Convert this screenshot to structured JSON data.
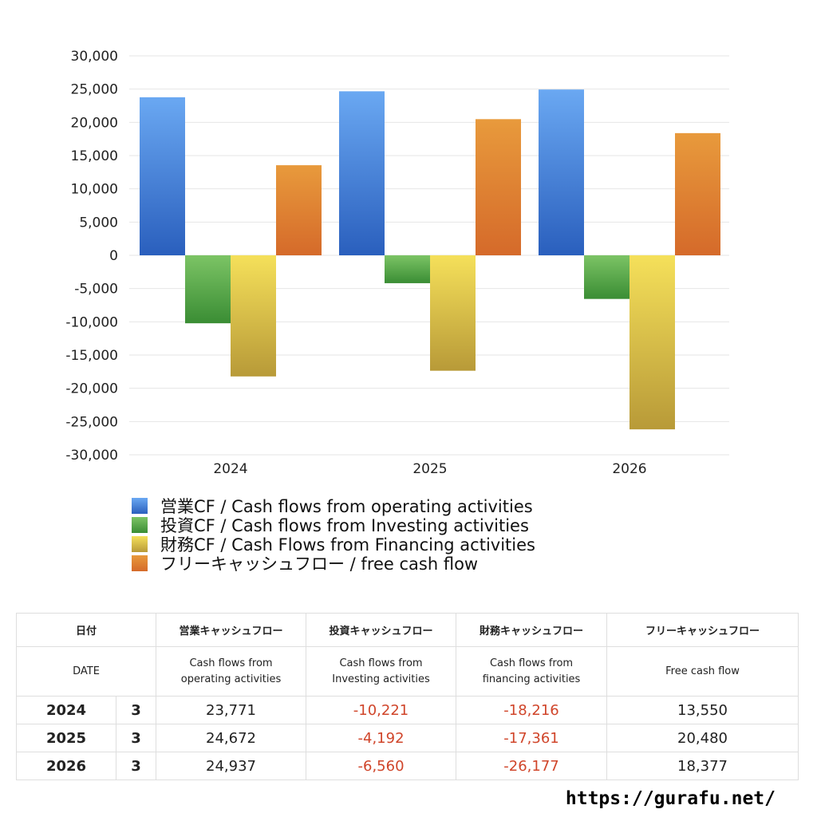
{
  "chart_data": {
    "type": "bar",
    "categories": [
      "2024",
      "2025",
      "2026"
    ],
    "series": [
      {
        "name": "営業CF / Cash flows from operating activities",
        "values": [
          23771,
          24672,
          24937
        ],
        "color_top": "#6aa8f2",
        "color_bottom": "#2a5fbd"
      },
      {
        "name": "投資CF / Cash flows from Investing activities",
        "values": [
          -10221,
          -4192,
          -6560
        ],
        "color_top": "#7cc465",
        "color_bottom": "#3a8d34"
      },
      {
        "name": "財務CF / Cash Flows from Financing activities",
        "values": [
          -18216,
          -17361,
          -26177
        ],
        "color_top": "#f5e05a",
        "color_bottom": "#b89a38"
      },
      {
        "name": "フリーキャッシュフロー / free cash flow",
        "values": [
          13550,
          20480,
          18377
        ],
        "color_top": "#e89a3c",
        "color_bottom": "#d56a2a"
      }
    ],
    "yticks": [
      "30,000",
      "25,000",
      "20,000",
      "15,000",
      "10,000",
      "5,000",
      "0",
      "-5,000",
      "-10,000",
      "-15,000",
      "-20,000",
      "-25,000",
      "-30,000"
    ],
    "ylim": [
      -30000,
      30000
    ],
    "grid": true,
    "legend_position": "bottom"
  },
  "table": {
    "header_jp": [
      "日付",
      "営業キャッシュフロー",
      "投資キャッシュフロー",
      "財務キャッシュフロー",
      "フリーキャッシュフロー"
    ],
    "header_en": [
      "DATE",
      "Cash flows from\noperating activities",
      "Cash flows from\nInvesting activities",
      "Cash flows from\nfinancing activities",
      "Free cash flow"
    ],
    "rows": [
      {
        "year": "2024",
        "month": "3",
        "values": [
          "23,771",
          "-10,221",
          "-18,216",
          "13,550"
        ]
      },
      {
        "year": "2025",
        "month": "3",
        "values": [
          "24,672",
          "-4,192",
          "-17,361",
          "20,480"
        ]
      },
      {
        "year": "2026",
        "month": "3",
        "values": [
          "24,937",
          "-6,560",
          "-26,177",
          "18,377"
        ]
      }
    ]
  },
  "site_url": "https://gurafu.net/",
  "colors": {
    "negative": "#d0452a",
    "grid": "#e6e6e6"
  }
}
